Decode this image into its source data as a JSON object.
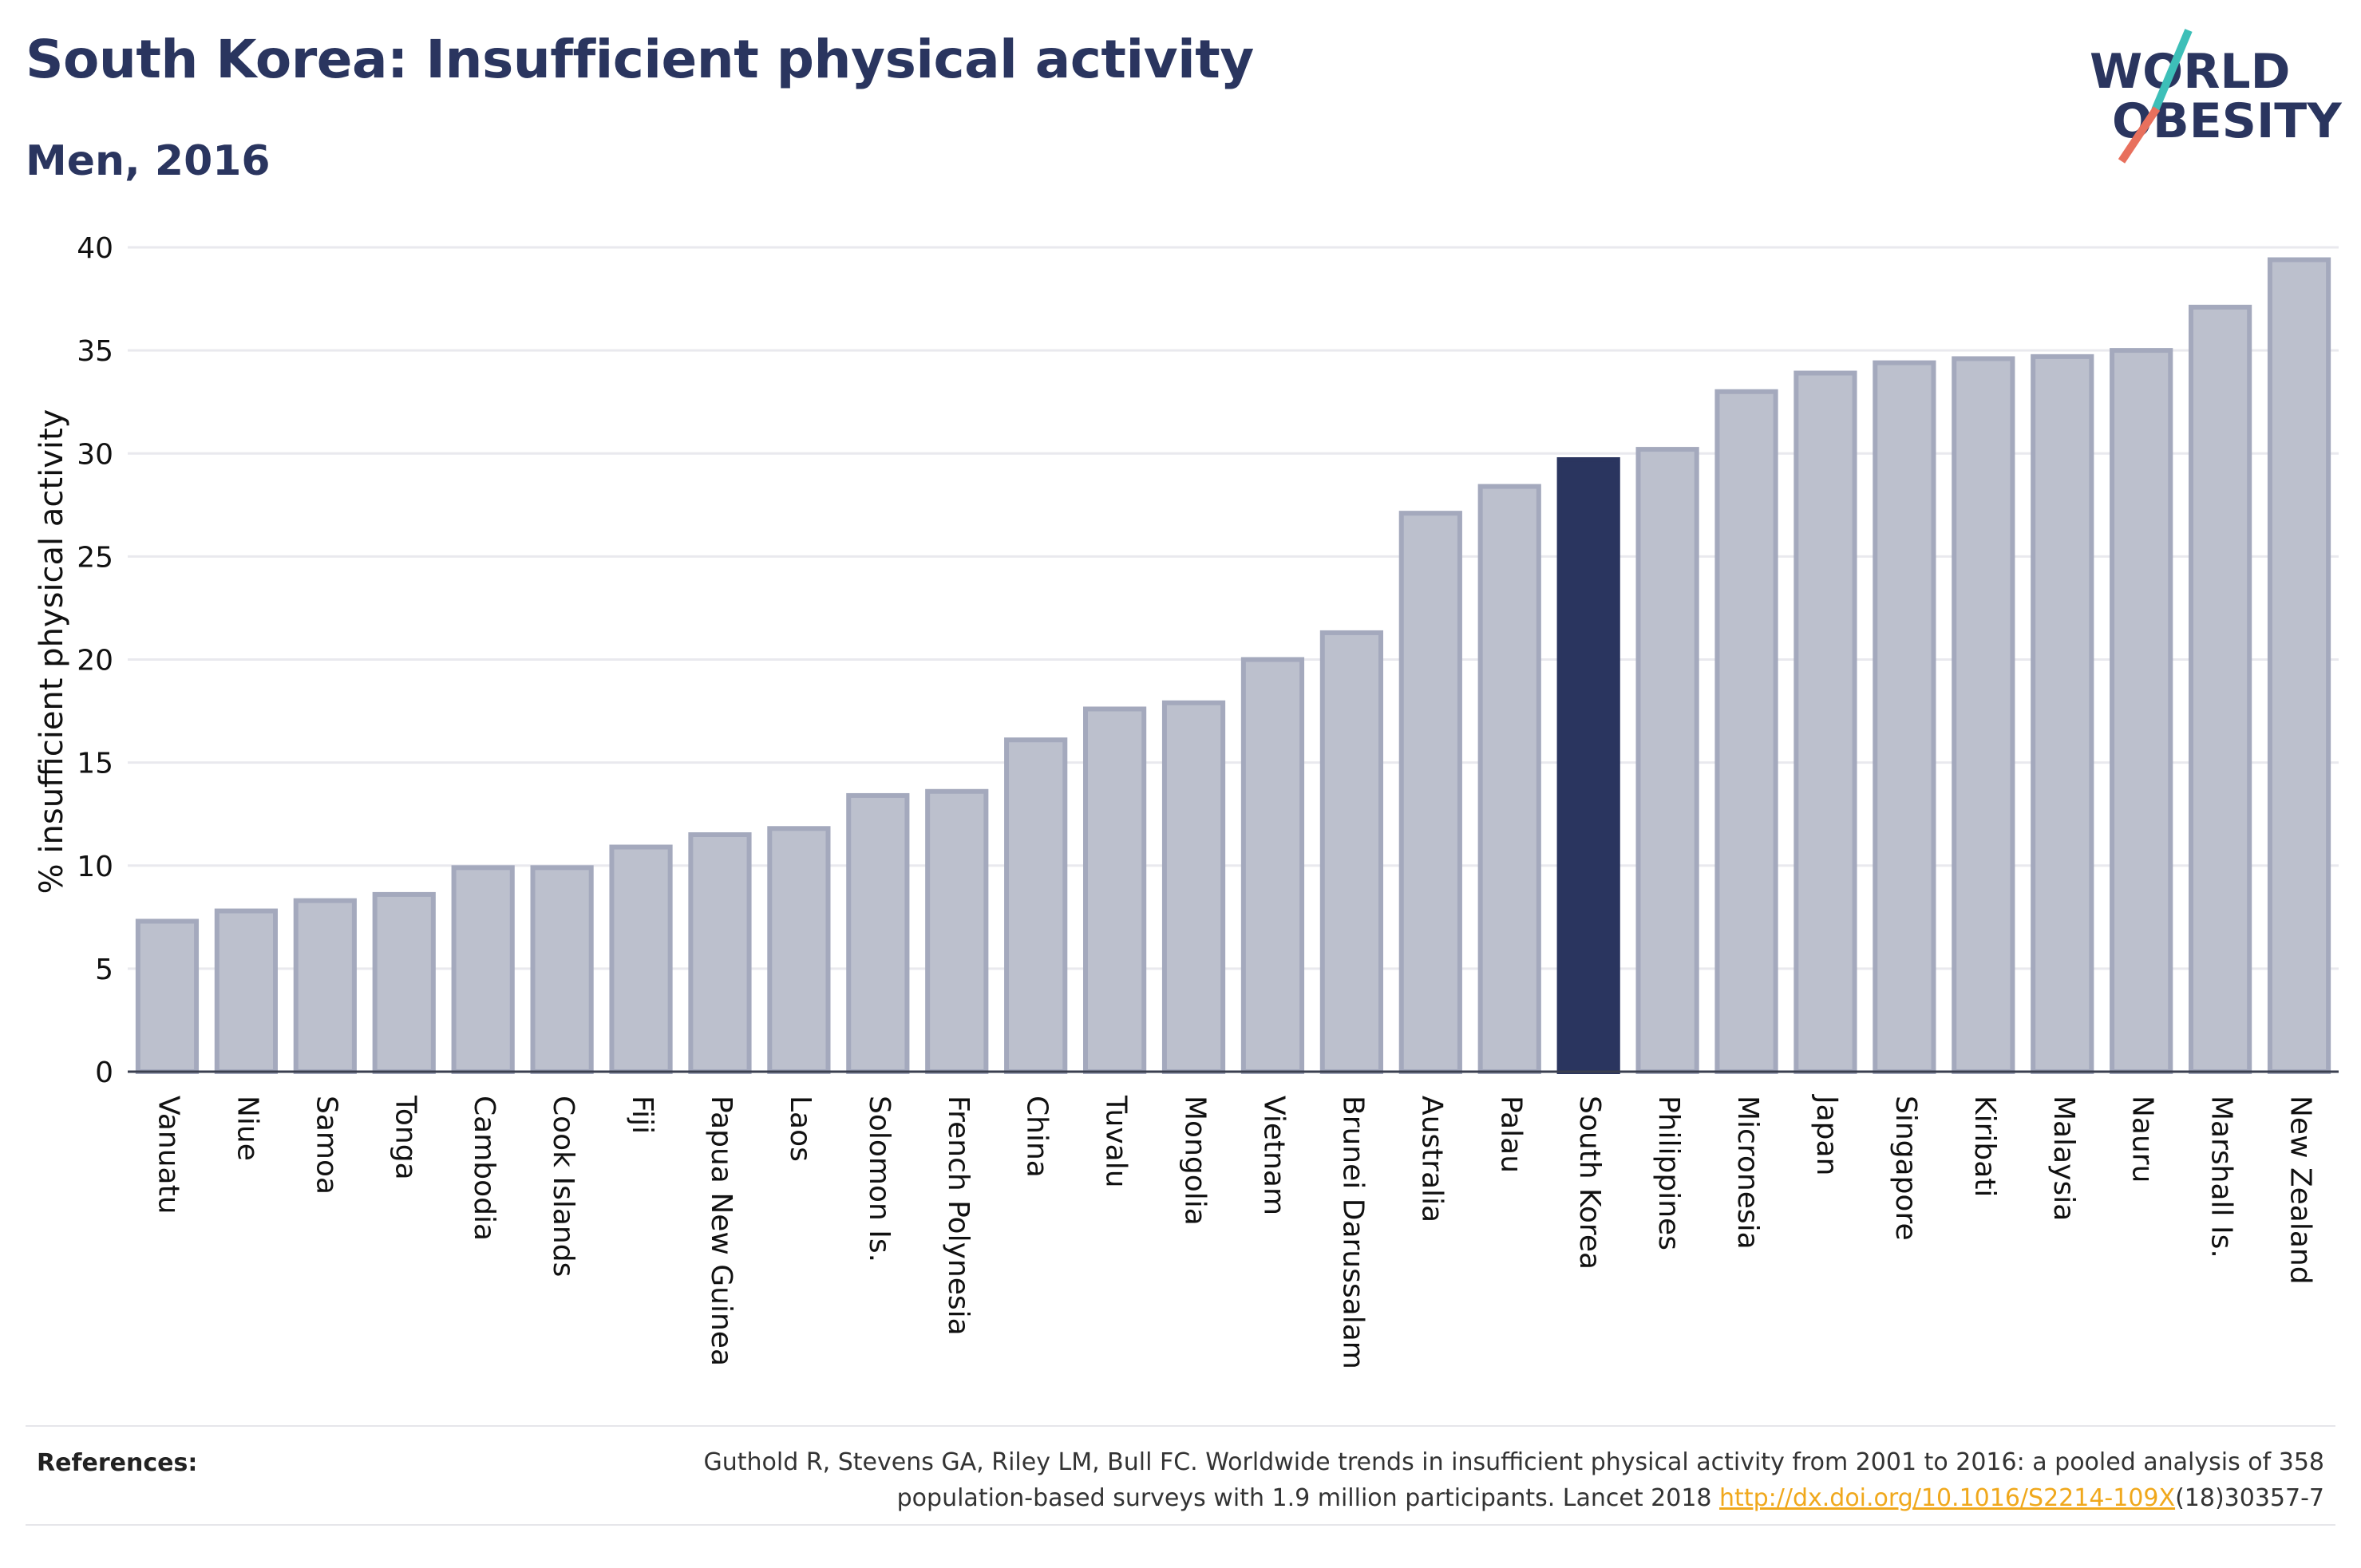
{
  "header": {
    "title": "South Korea: Insufficient physical activity",
    "subtitle": "Men, 2016"
  },
  "logo": {
    "line1": "WORLD",
    "line2": "OBESITY",
    "colors": {
      "text": "#2a355f",
      "slash_top": "#3dbfb8",
      "slash_bottom": "#e8705d"
    }
  },
  "references": {
    "label": "References:",
    "text_line1": "Guthold R, Stevens GA, Riley LM, Bull FC. Worldwide trends in insufficient physical activity from 2001 to 2016: a pooled analysis of 358",
    "text_line2_pre": "population-based surveys with 1.9 million participants. Lancet 2018 ",
    "link": "http://dx.doi.org/10.1016/S2214-109X",
    "text_line2_post": "(18)30357-7"
  },
  "chart_data": {
    "type": "bar",
    "title": "",
    "xlabel": "",
    "ylabel": "% insufficient physical activity",
    "ylim": [
      0,
      40
    ],
    "yticks": [
      0,
      5,
      10,
      15,
      20,
      25,
      30,
      35,
      40
    ],
    "grid": true,
    "highlight": "South Korea",
    "colors": {
      "bar": "#bcc0cd",
      "bar_edge": "#a4a9bd",
      "highlight": "#2a355f",
      "grid": "#e9e9ee",
      "axis": "#3a3f4f"
    },
    "categories": [
      "Vanuatu",
      "Niue",
      "Samoa",
      "Tonga",
      "Cambodia",
      "Cook Islands",
      "Fiji",
      "Papua New Guinea",
      "Laos",
      "Solomon Is.",
      "French Polynesia",
      "China",
      "Tuvalu",
      "Mongolia",
      "Vietnam",
      "Brunei Darussalam",
      "Australia",
      "Palau",
      "South Korea",
      "Philippines",
      "Micronesia",
      "Japan",
      "Singapore",
      "Kiribati",
      "Malaysia",
      "Nauru",
      "Marshall Is.",
      "New Zealand"
    ],
    "values": [
      7.3,
      7.8,
      8.3,
      8.6,
      9.9,
      9.9,
      10.9,
      11.5,
      11.8,
      13.4,
      13.6,
      16.1,
      17.6,
      17.9,
      20.0,
      21.3,
      27.1,
      28.4,
      29.7,
      30.2,
      33.0,
      33.9,
      34.4,
      34.6,
      34.7,
      35.0,
      37.1,
      39.4
    ]
  }
}
